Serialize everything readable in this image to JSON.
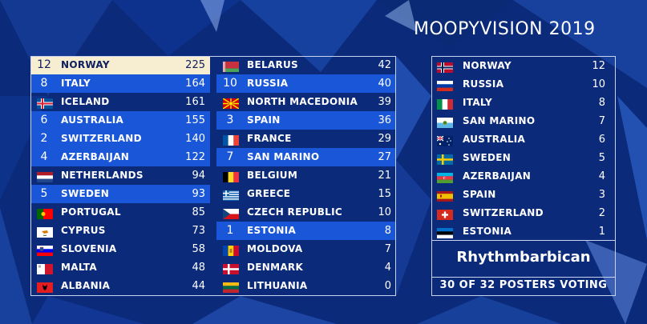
{
  "title": "MOOPYVISION 2019",
  "scoreboard": {
    "left": [
      {
        "pts": "12",
        "name": "NORWAY",
        "score": "225",
        "flag": "norway-flag-icon",
        "style": "top"
      },
      {
        "pts": "8",
        "name": "ITALY",
        "score": "164",
        "flag": "",
        "style": "hl"
      },
      {
        "pts": "",
        "name": "ICELAND",
        "score": "161",
        "flag": "iceland-flag-icon",
        "style": ""
      },
      {
        "pts": "6",
        "name": "AUSTRALIA",
        "score": "155",
        "flag": "",
        "style": "hl"
      },
      {
        "pts": "2",
        "name": "SWITZERLAND",
        "score": "140",
        "flag": "",
        "style": "hl"
      },
      {
        "pts": "4",
        "name": "AZERBAIJAN",
        "score": "122",
        "flag": "",
        "style": "hl"
      },
      {
        "pts": "",
        "name": "NETHERLANDS",
        "score": "94",
        "flag": "netherlands-flag-icon",
        "style": ""
      },
      {
        "pts": "5",
        "name": "SWEDEN",
        "score": "93",
        "flag": "",
        "style": "hl"
      },
      {
        "pts": "",
        "name": "PORTUGAL",
        "score": "85",
        "flag": "portugal-flag-icon",
        "style": ""
      },
      {
        "pts": "",
        "name": "CYPRUS",
        "score": "73",
        "flag": "cyprus-flag-icon",
        "style": ""
      },
      {
        "pts": "",
        "name": "SLOVENIA",
        "score": "58",
        "flag": "slovenia-flag-icon",
        "style": ""
      },
      {
        "pts": "",
        "name": "MALTA",
        "score": "48",
        "flag": "malta-flag-icon",
        "style": ""
      },
      {
        "pts": "",
        "name": "ALBANIA",
        "score": "44",
        "flag": "albania-flag-icon",
        "style": ""
      }
    ],
    "right": [
      {
        "pts": "",
        "name": "BELARUS",
        "score": "42",
        "flag": "belarus-flag-icon",
        "style": ""
      },
      {
        "pts": "10",
        "name": "RUSSIA",
        "score": "40",
        "flag": "",
        "style": "hl"
      },
      {
        "pts": "",
        "name": "NORTH MACEDONIA",
        "score": "39",
        "flag": "north-macedonia-flag-icon",
        "style": ""
      },
      {
        "pts": "3",
        "name": "SPAIN",
        "score": "36",
        "flag": "",
        "style": "hl"
      },
      {
        "pts": "",
        "name": "FRANCE",
        "score": "29",
        "flag": "france-flag-icon",
        "style": ""
      },
      {
        "pts": "7",
        "name": "SAN MARINO",
        "score": "27",
        "flag": "",
        "style": "hl"
      },
      {
        "pts": "",
        "name": "BELGIUM",
        "score": "21",
        "flag": "belgium-flag-icon",
        "style": ""
      },
      {
        "pts": "",
        "name": "GREECE",
        "score": "15",
        "flag": "greece-flag-icon",
        "style": ""
      },
      {
        "pts": "",
        "name": "CZECH REPUBLIC",
        "score": "10",
        "flag": "czech-flag-icon",
        "style": ""
      },
      {
        "pts": "1",
        "name": "ESTONIA",
        "score": "8",
        "flag": "",
        "style": "hl"
      },
      {
        "pts": "",
        "name": "MOLDOVA",
        "score": "7",
        "flag": "moldova-flag-icon",
        "style": ""
      },
      {
        "pts": "",
        "name": "DENMARK",
        "score": "4",
        "flag": "denmark-flag-icon",
        "style": ""
      },
      {
        "pts": "",
        "name": "LITHUANIA",
        "score": "0",
        "flag": "lithuania-flag-icon",
        "style": ""
      }
    ]
  },
  "voting_panel": {
    "entries": [
      {
        "name": "NORWAY",
        "points": "12",
        "flag": "norway-flag-icon"
      },
      {
        "name": "RUSSIA",
        "points": "10",
        "flag": "russia-flag-icon"
      },
      {
        "name": "ITALY",
        "points": "8",
        "flag": "italy-flag-icon"
      },
      {
        "name": "SAN MARINO",
        "points": "7",
        "flag": "san-marino-flag-icon"
      },
      {
        "name": "AUSTRALIA",
        "points": "6",
        "flag": "australia-flag-icon"
      },
      {
        "name": "SWEDEN",
        "points": "5",
        "flag": "sweden-flag-icon"
      },
      {
        "name": "AZERBAIJAN",
        "points": "4",
        "flag": "azerbaijan-flag-icon"
      },
      {
        "name": "SPAIN",
        "points": "3",
        "flag": "spain-flag-icon"
      },
      {
        "name": "SWITZERLAND",
        "points": "2",
        "flag": "switzerland-flag-icon"
      },
      {
        "name": "ESTONIA",
        "points": "1",
        "flag": "estonia-flag-icon"
      }
    ],
    "presenter": "Rhythmbarbican",
    "voting_status": "30 OF 32 POSTERS VOTING"
  },
  "colors": {
    "background": "#0a2a78",
    "highlight": "#1a56d8",
    "leader_row": "#f7edd0",
    "border": "#c9d2ee"
  }
}
